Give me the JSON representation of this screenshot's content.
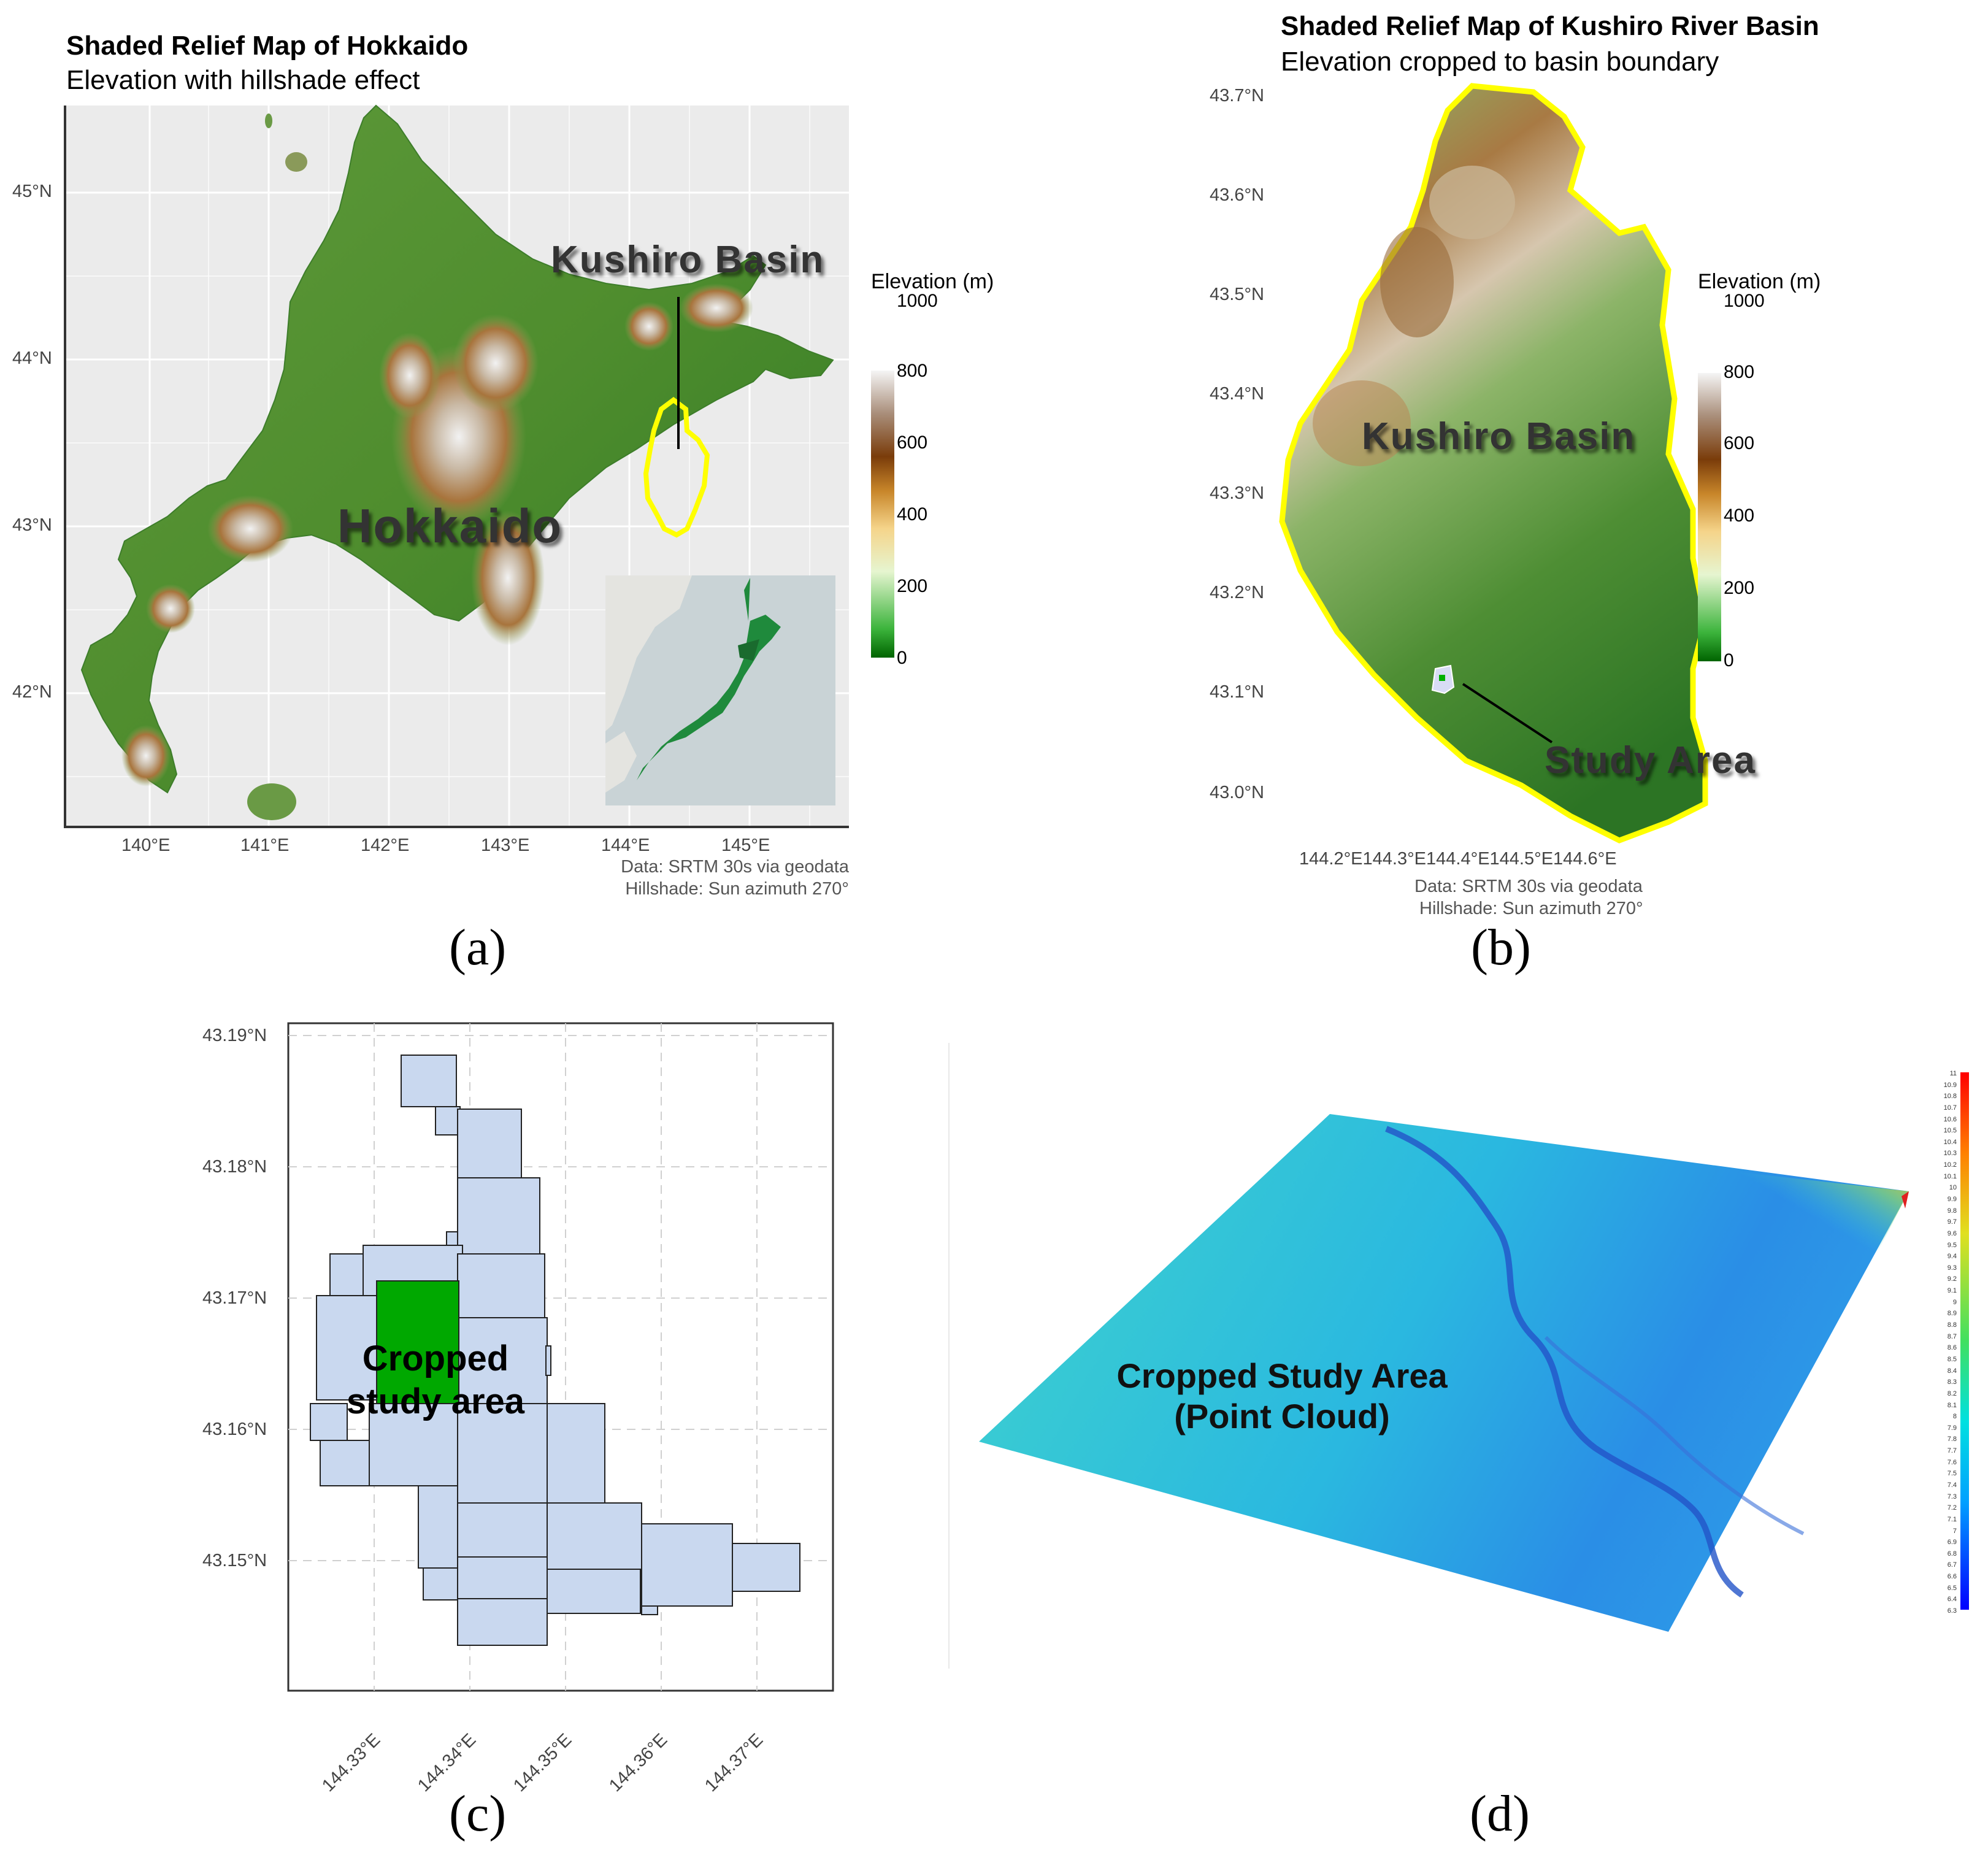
{
  "panel_a": {
    "title": "Shaded Relief Map of Hokkaido",
    "subtitle": "Elevation with hillshade effect",
    "lat_ticks": [
      "45°N",
      "44°N",
      "43°N",
      "42°N"
    ],
    "lon_ticks": [
      "140°E",
      "141°E",
      "142°E",
      "143°E",
      "144°E",
      "145°E"
    ],
    "label_basin": "Kushiro Basin",
    "label_island": "Hokkaido",
    "legend_title": "Elevation (m)",
    "legend_ticks": [
      "1000",
      "800",
      "600",
      "400",
      "200",
      "0"
    ],
    "credit_line1": "Data: SRTM 30s via geodata",
    "credit_line2": "Hillshade: Sun azimuth 270°",
    "caption": "(a)"
  },
  "panel_b": {
    "title": "Shaded Relief Map of Kushiro River Basin",
    "subtitle": "Elevation cropped to basin boundary",
    "lat_ticks": [
      "43.7°N",
      "43.6°N",
      "43.5°N",
      "43.4°N",
      "43.3°N",
      "43.2°N",
      "43.1°N",
      "43.0°N"
    ],
    "lon_ticks_text": "144.2°E144.3°E144.4°E144.5°E144.6°E",
    "label_basin": "Kushiro Basin",
    "label_study": "Study Area",
    "legend_title": "Elevation (m)",
    "legend_ticks": [
      "1000",
      "800",
      "600",
      "400",
      "200",
      "0"
    ],
    "credit_line1": "Data: SRTM 30s via geodata",
    "credit_line2": "Hillshade: Sun azimuth 270°",
    "caption": "(b)"
  },
  "panel_c": {
    "lat_ticks": [
      "43.19°N",
      "43.18°N",
      "43.17°N",
      "43.16°N",
      "43.15°N"
    ],
    "lon_ticks": [
      "144.33°E",
      "144.34°E",
      "144.35°E",
      "144.36°E",
      "144.37°E"
    ],
    "label_line1": "Cropped",
    "label_line2": "study area",
    "caption": "(c)"
  },
  "panel_d": {
    "label_line1": "Cropped Study Area",
    "label_line2": "(Point Cloud)",
    "colorbar_range": [
      6.3,
      11
    ],
    "caption": "(d)"
  },
  "colors": {
    "yellow_boundary": "#ffff00",
    "grid_fill": "#c9d8ef",
    "study_fill": "#00a800",
    "map_bg": "#ebebeb"
  }
}
